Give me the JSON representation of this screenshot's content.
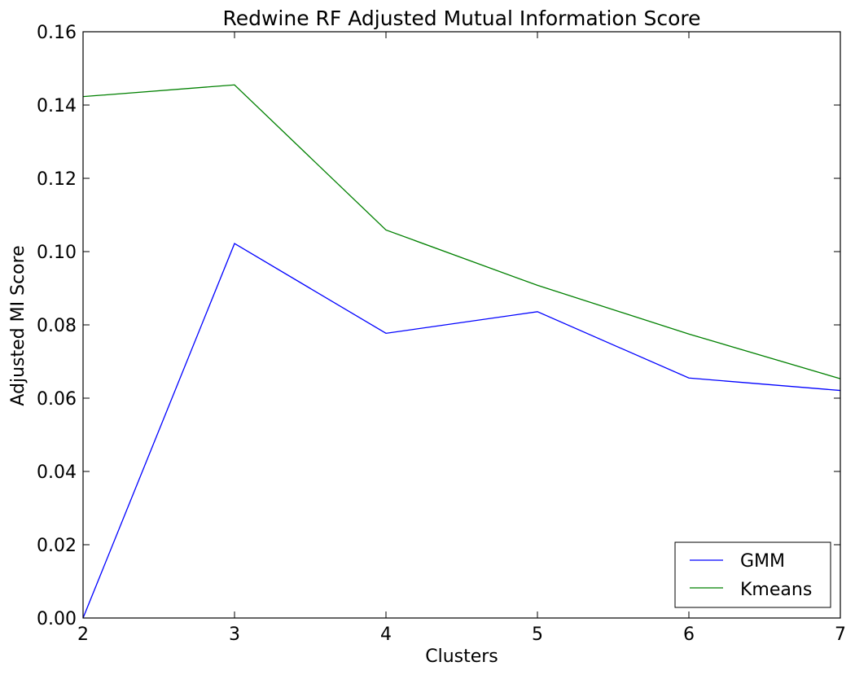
{
  "chart_data": {
    "type": "line",
    "title": "Redwine RF Adjusted Mutual Information Score",
    "xlabel": "Clusters",
    "ylabel": "Adjusted MI Score",
    "x": [
      2,
      3,
      4,
      5,
      6,
      7
    ],
    "xlim": [
      2,
      7
    ],
    "ylim": [
      0.0,
      0.16
    ],
    "xticks": [
      "2",
      "3",
      "4",
      "5",
      "6",
      "7"
    ],
    "yticks": [
      "0.00",
      "0.02",
      "0.04",
      "0.06",
      "0.08",
      "0.10",
      "0.12",
      "0.14",
      "0.16"
    ],
    "grid": false,
    "legend_position": "bottom-right",
    "series": [
      {
        "name": "GMM",
        "color": "#0000ff",
        "values": [
          0.0,
          0.1022,
          0.0777,
          0.0836,
          0.0655,
          0.0621
        ]
      },
      {
        "name": "Kmeans",
        "color": "#008000",
        "values": [
          0.1423,
          0.1455,
          0.1059,
          0.0908,
          0.0775,
          0.0653
        ]
      }
    ]
  }
}
